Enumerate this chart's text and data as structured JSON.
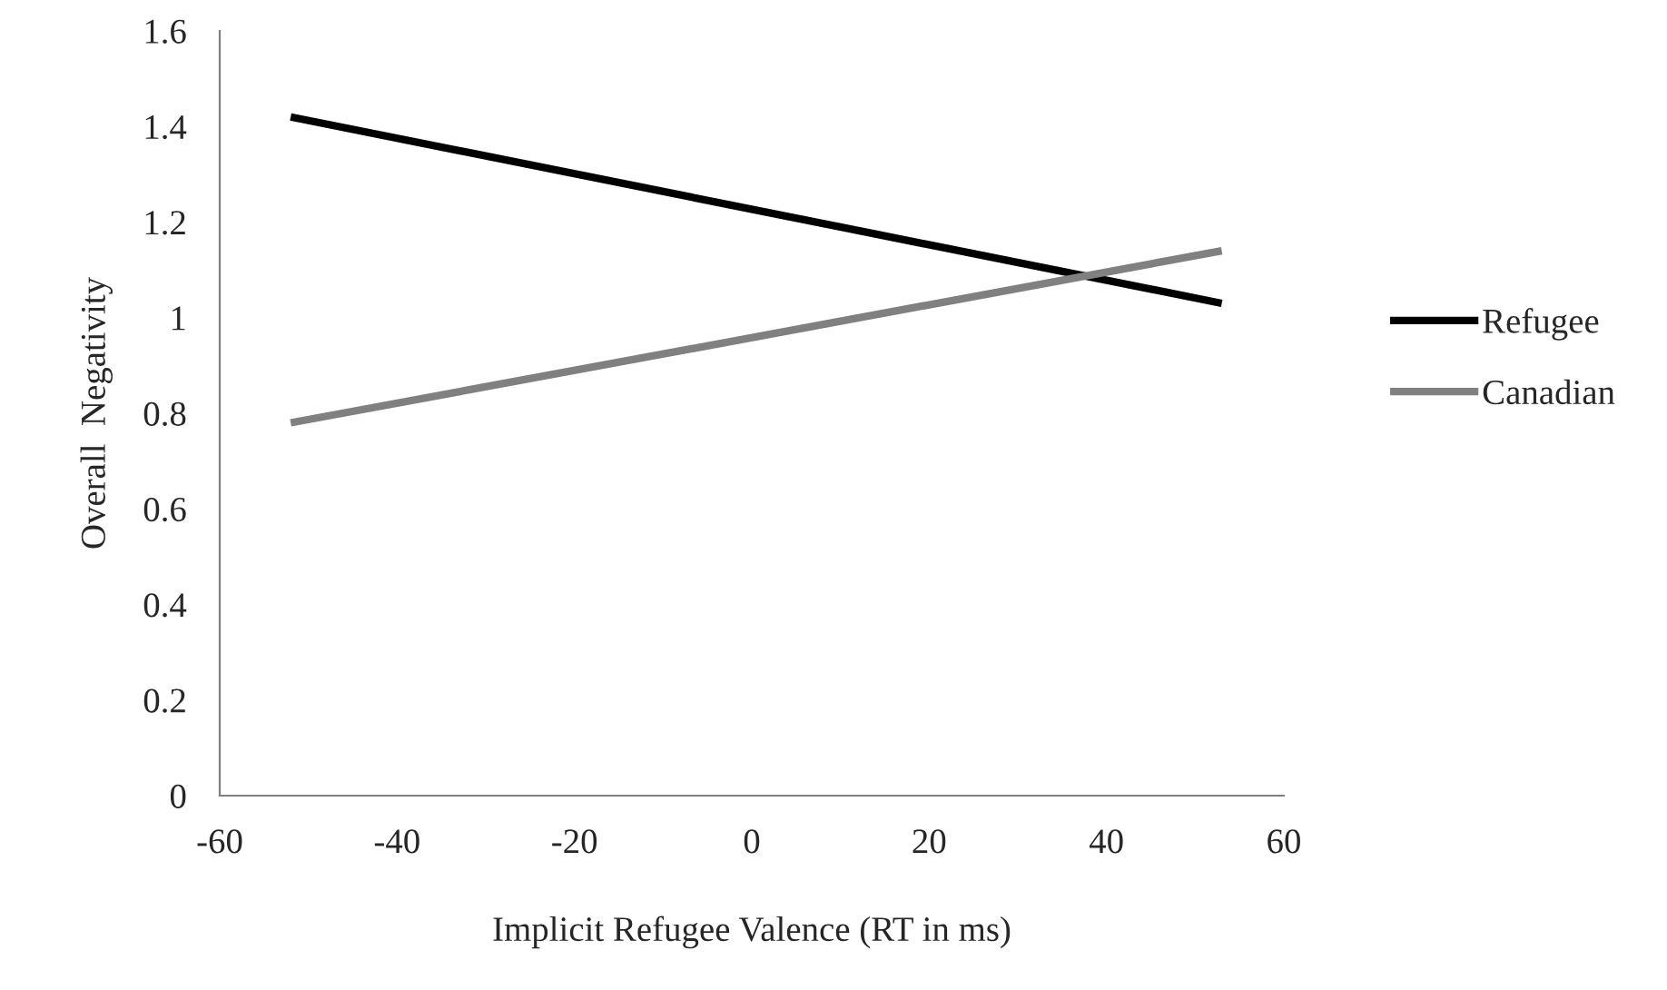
{
  "chart_data": {
    "type": "line",
    "xlabel": "Implicit Refugee Valence (RT in ms)",
    "ylabel": "Overall  Negativity",
    "series": [
      {
        "name": "Refugee",
        "color": "#000000",
        "values": [
          1.42,
          1.03
        ]
      },
      {
        "name": "Canadian",
        "color": "#808080",
        "values": [
          0.78,
          1.14
        ]
      }
    ],
    "x": [
      -52,
      53
    ],
    "xlim": [
      -60,
      60
    ],
    "xticks": [
      -60,
      -40,
      -20,
      0,
      20,
      40,
      60
    ],
    "ylim": [
      0,
      1.6
    ],
    "yticks": [
      0,
      {
        "value": 0.2,
        "label": "0.2"
      },
      {
        "value": 0.4,
        "label": "0.4"
      },
      {
        "value": 0.6,
        "label": "0.6"
      },
      {
        "value": 0.8,
        "label": "0.8"
      },
      1,
      {
        "value": 1.2,
        "label": "1.2"
      },
      {
        "value": 1.4,
        "label": "1.4"
      },
      {
        "value": 1.6,
        "label": "1.6"
      }
    ],
    "grid": false,
    "legend": "right",
    "line_style": "solid"
  }
}
